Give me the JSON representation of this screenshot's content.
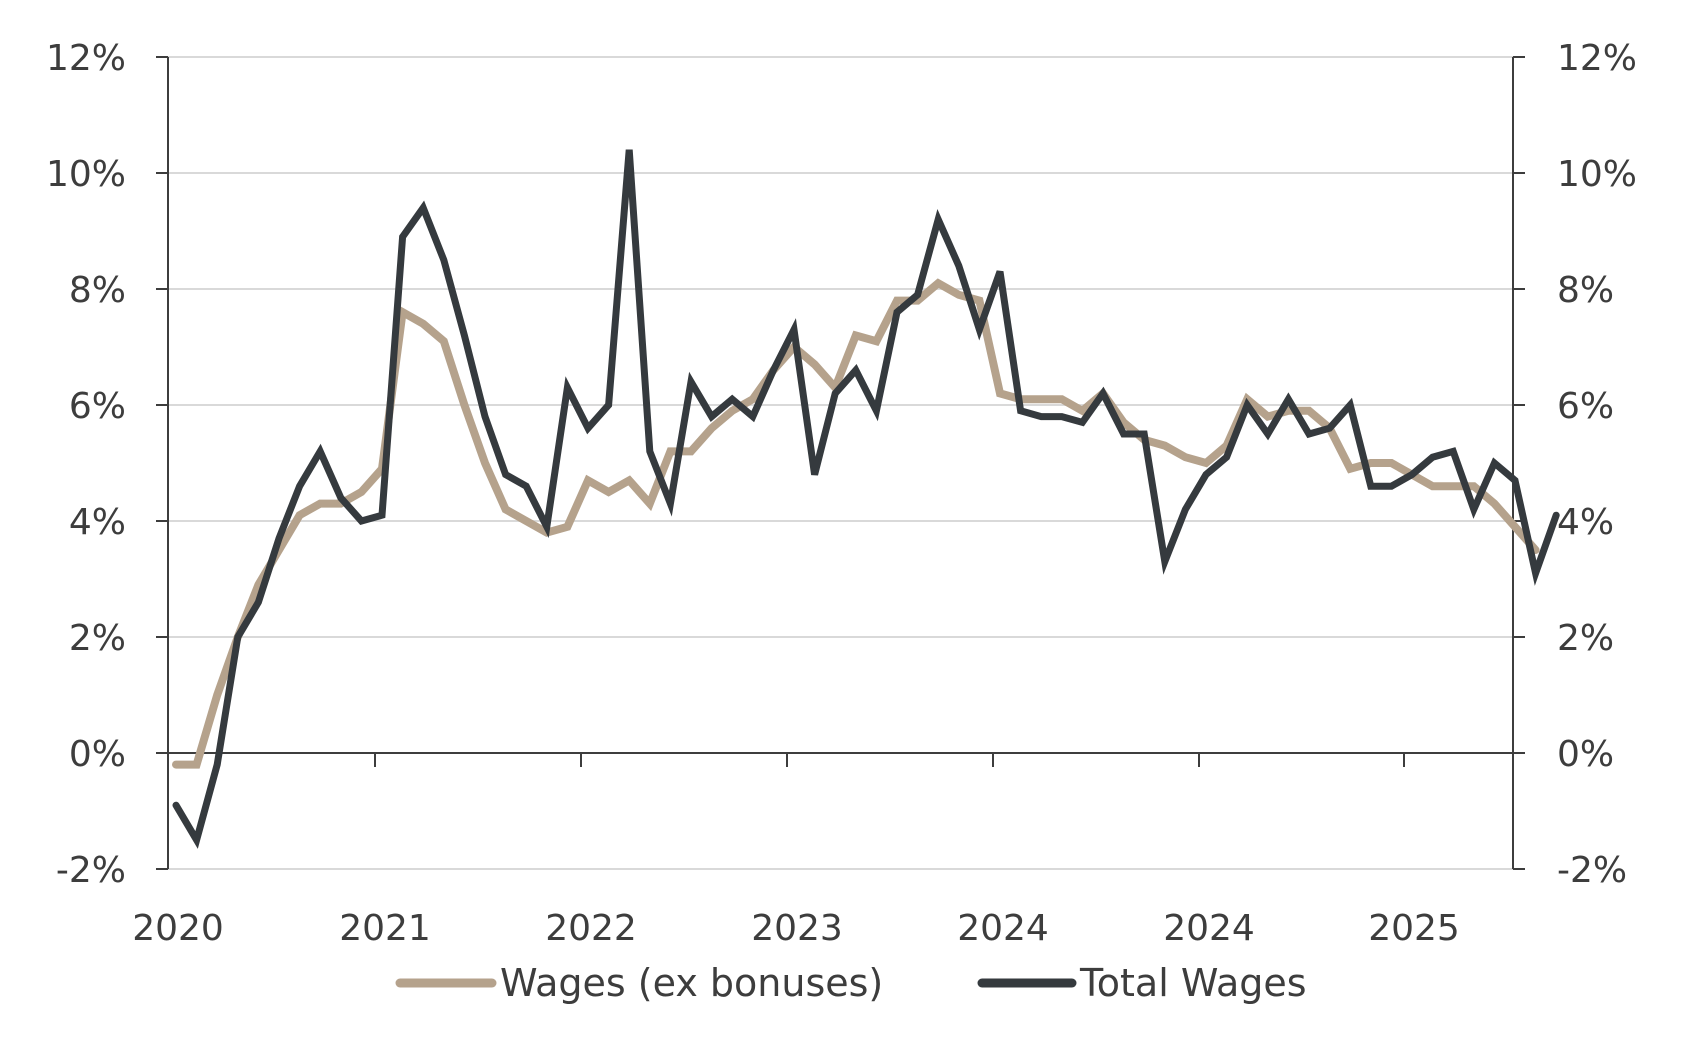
{
  "chart_data": {
    "type": "line",
    "title": "",
    "xlabel": "",
    "ylabel": "",
    "ylim": [
      -2,
      12
    ],
    "y_ticks": [
      "12%",
      "10%",
      "8%",
      "6%",
      "4%",
      "2%",
      "0%",
      "-2%"
    ],
    "y_tick_values": [
      12,
      10,
      8,
      6,
      4,
      2,
      0,
      -2
    ],
    "x_tick_labels": [
      "2020",
      "2021",
      "2022",
      "2023",
      "2024",
      "2024",
      "2025"
    ],
    "x_tick_positions": [
      0,
      10,
      20,
      30,
      40,
      50,
      60
    ],
    "secondary_y_axis": true,
    "grid": "horizontal",
    "legend_position": "bottom",
    "series": [
      {
        "name": "Wages (ex bonuses)",
        "color": "#b5a28c",
        "values": [
          -0.2,
          -0.2,
          1.0,
          2.0,
          2.9,
          3.5,
          4.1,
          4.3,
          4.3,
          4.5,
          4.9,
          7.6,
          7.4,
          7.1,
          6.0,
          5.0,
          4.2,
          4.0,
          3.8,
          3.9,
          4.7,
          4.5,
          4.7,
          4.3,
          5.2,
          5.2,
          5.6,
          5.9,
          6.1,
          6.6,
          7.0,
          6.7,
          6.3,
          7.2,
          7.1,
          7.8,
          7.8,
          8.1,
          7.9,
          7.8,
          6.2,
          6.1,
          6.1,
          6.1,
          5.9,
          6.2,
          5.7,
          5.4,
          5.3,
          5.1,
          5.0,
          5.3,
          6.1,
          5.8,
          5.9,
          5.9,
          5.6,
          4.9,
          5.0,
          5.0,
          4.8,
          4.6,
          4.6,
          4.6,
          4.3,
          3.9,
          3.5
        ]
      },
      {
        "name": "Total Wages",
        "color": "#353a3e",
        "values": [
          -0.9,
          -1.5,
          -0.2,
          2.0,
          2.6,
          3.7,
          4.6,
          5.2,
          4.4,
          4.0,
          4.1,
          8.9,
          9.4,
          8.5,
          7.2,
          5.8,
          4.8,
          4.6,
          3.9,
          6.3,
          5.6,
          6.0,
          10.4,
          5.2,
          4.3,
          6.4,
          5.8,
          6.1,
          5.8,
          6.6,
          7.3,
          4.8,
          6.2,
          6.6,
          5.9,
          7.6,
          7.9,
          9.2,
          8.4,
          7.3,
          8.3,
          5.9,
          5.8,
          5.8,
          5.7,
          6.2,
          5.5,
          5.5,
          3.3,
          4.2,
          4.8,
          5.1,
          6.0,
          5.5,
          6.1,
          5.5,
          5.6,
          6.0,
          4.6,
          4.6,
          4.8,
          5.1,
          5.2,
          4.2,
          5.0,
          4.7,
          3.1,
          4.1
        ]
      }
    ]
  }
}
